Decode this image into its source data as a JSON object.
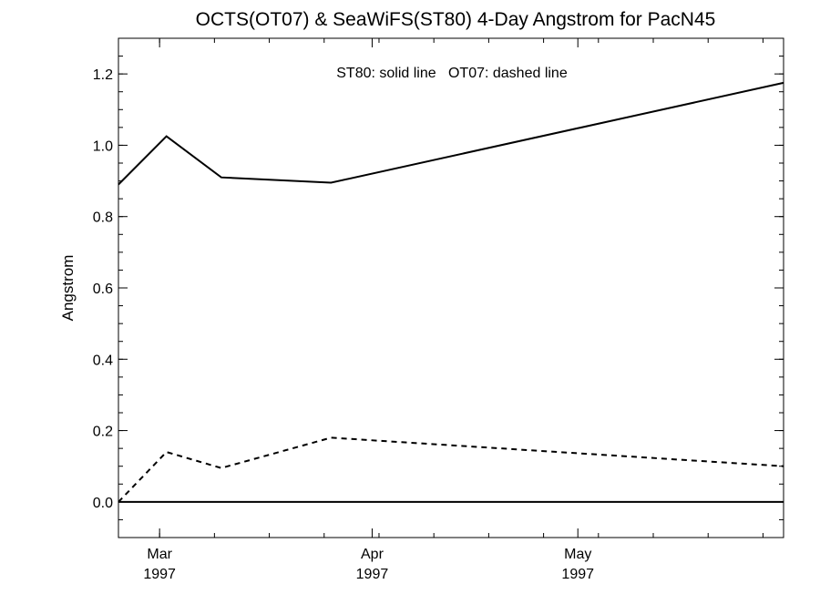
{
  "chart_data": {
    "type": "line",
    "title": "OCTS(OT07) & SeaWiFS(ST80) 4-Day Angstrom for PacN45",
    "annotation": "ST80: solid line   OT07: dashed line",
    "xlabel": "",
    "ylabel": "Angstrom",
    "xlim": [
      "1997-02-23",
      "1997-05-31"
    ],
    "ylim": [
      -0.1,
      1.3
    ],
    "x_ticks": [
      {
        "date": "1997-03-01",
        "month": "Mar",
        "year": "1997"
      },
      {
        "date": "1997-04-01",
        "month": "Apr",
        "year": "1997"
      },
      {
        "date": "1997-05-01",
        "month": "May",
        "year": "1997"
      }
    ],
    "y_ticks": [
      "0.0",
      "0.2",
      "0.4",
      "0.6",
      "0.8",
      "1.0",
      "1.2"
    ],
    "y_minor_step": 0.05,
    "x_minor_days": 4,
    "grid": false,
    "zero_line": true,
    "series": [
      {
        "name": "ST80",
        "style": "solid",
        "color": "#000000",
        "points": [
          {
            "x": "1997-02-23",
            "y": 0.89
          },
          {
            "x": "1997-03-02",
            "y": 1.025
          },
          {
            "x": "1997-03-10",
            "y": 0.91
          },
          {
            "x": "1997-03-26",
            "y": 0.895
          },
          {
            "x": "1997-05-31",
            "y": 1.175
          }
        ]
      },
      {
        "name": "OT07",
        "style": "dashed",
        "color": "#000000",
        "points": [
          {
            "x": "1997-02-23",
            "y": 0.0
          },
          {
            "x": "1997-03-02",
            "y": 0.14
          },
          {
            "x": "1997-03-10",
            "y": 0.095
          },
          {
            "x": "1997-03-26",
            "y": 0.18
          },
          {
            "x": "1997-05-31",
            "y": 0.1
          }
        ]
      }
    ]
  }
}
